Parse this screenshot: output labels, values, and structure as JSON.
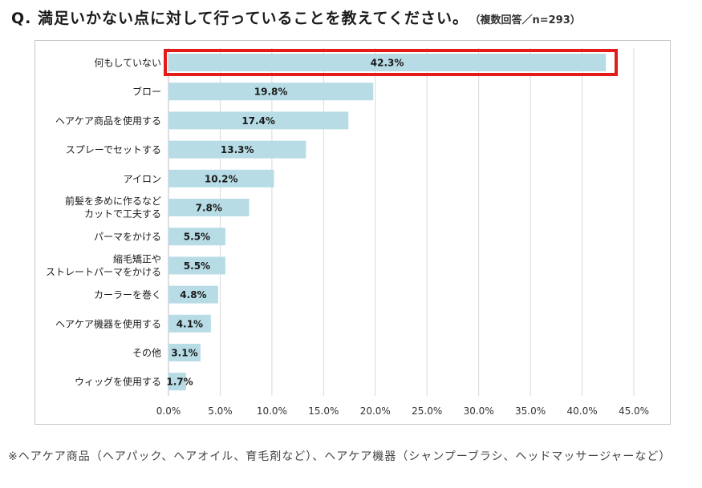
{
  "question": {
    "text": "Q. 満足いかない点に対して行っていることを教えてください。",
    "note": "（複数回答／n=293）"
  },
  "footnote": "※ヘアケア商品（ヘアパック、ヘアオイル、育毛剤など）、ヘアケア機器（シャンプーブラシ、ヘッドマッサージャーなど）",
  "chart_data": {
    "type": "bar",
    "orientation": "horizontal",
    "title": "",
    "xlabel": "",
    "ylabel": "",
    "xlim": [
      0,
      45
    ],
    "tick_step": 5,
    "tick_labels": [
      "0.0%",
      "5.0%",
      "10.0%",
      "15.0%",
      "20.0%",
      "25.0%",
      "30.0%",
      "35.0%",
      "40.0%",
      "45.0%"
    ],
    "grid": true,
    "bar_color": "#b7dce5",
    "highlight_color": "#e21b1b",
    "highlight_index": 0,
    "categories": [
      [
        "何もしていない"
      ],
      [
        "ブロー"
      ],
      [
        "ヘアケア商品を使用する"
      ],
      [
        "スプレーでセットする"
      ],
      [
        "アイロン"
      ],
      [
        "前髪を多めに作るなど",
        "カットで工夫する"
      ],
      [
        "パーマをかける"
      ],
      [
        "縮毛矯正や",
        "ストレートパーマをかける"
      ],
      [
        "カーラーを巻く"
      ],
      [
        "ヘアケア機器を使用する"
      ],
      [
        "その他"
      ],
      [
        "ウィッグを使用する"
      ]
    ],
    "values": [
      42.3,
      19.8,
      17.4,
      13.3,
      10.2,
      7.8,
      5.5,
      5.5,
      4.8,
      4.1,
      3.1,
      1.7
    ],
    "value_labels": [
      "42.3%",
      "19.8%",
      "17.4%",
      "13.3%",
      "10.2%",
      "7.8%",
      "5.5%",
      "5.5%",
      "4.8%",
      "4.1%",
      "3.1%",
      "1.7%"
    ]
  }
}
